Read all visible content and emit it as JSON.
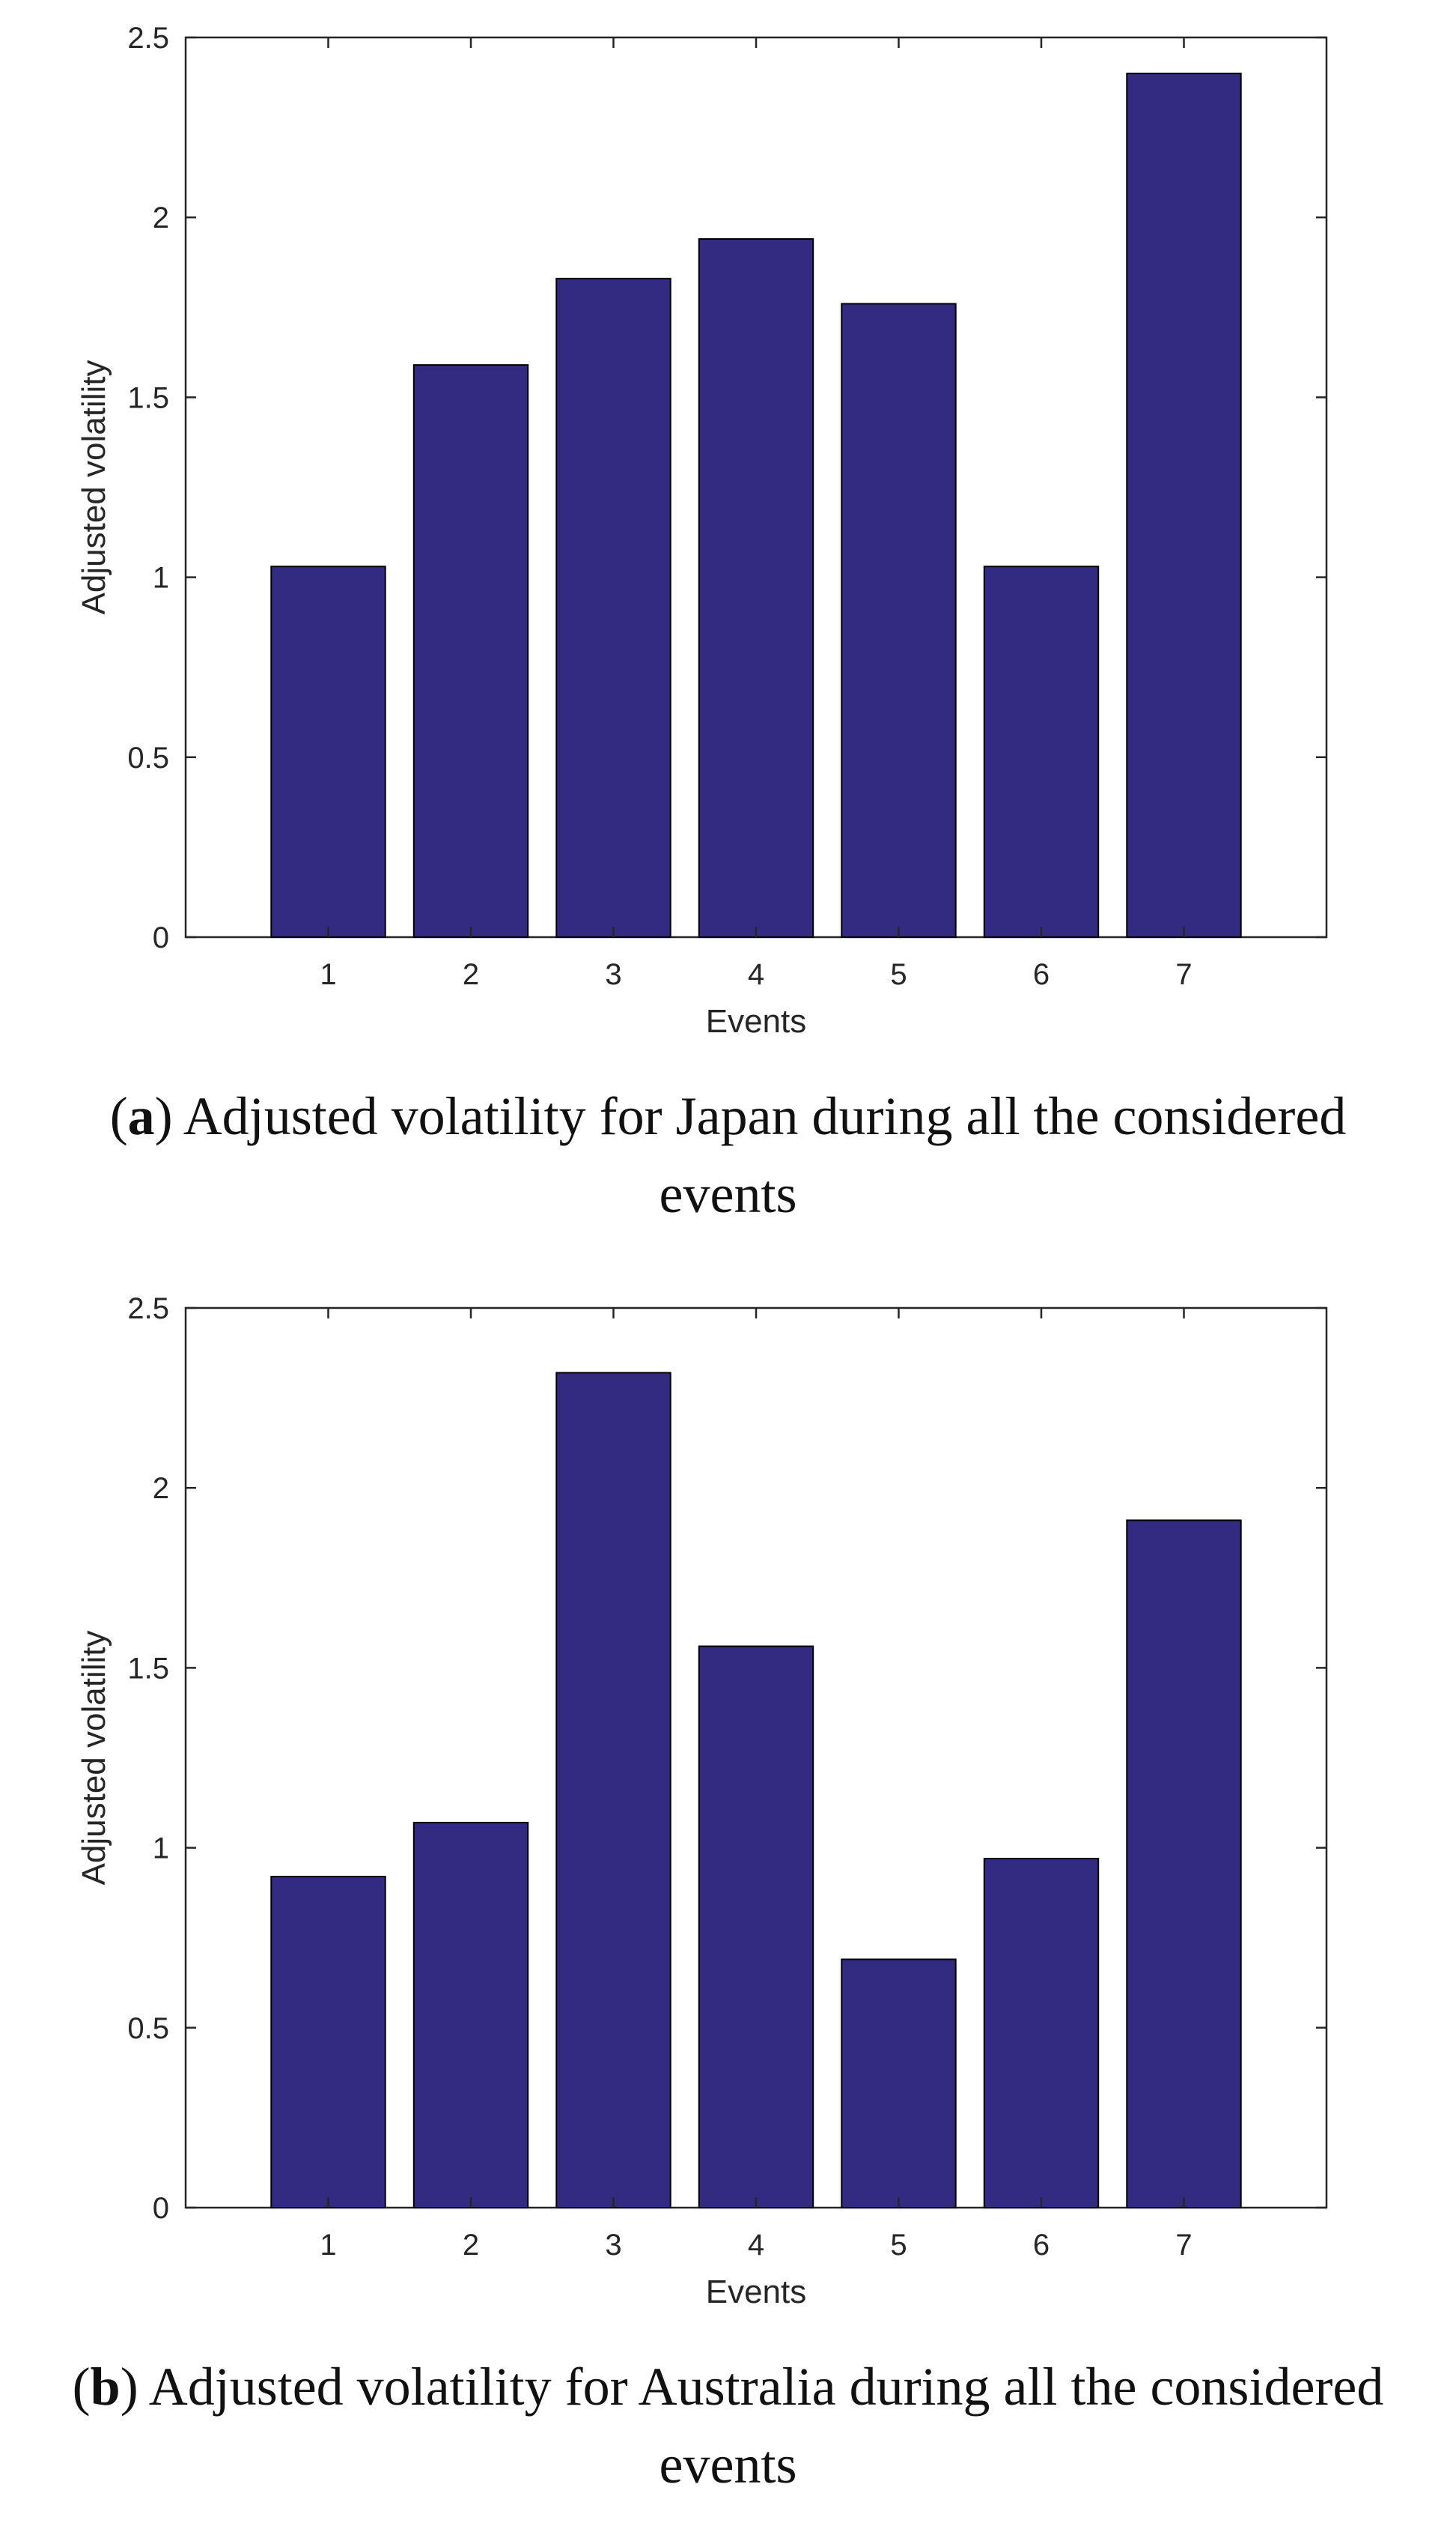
{
  "colors": {
    "bar": "#332a82",
    "axis": "#262626"
  },
  "chart_data": [
    {
      "type": "bar",
      "categories": [
        "1",
        "2",
        "3",
        "4",
        "5",
        "6",
        "7"
      ],
      "values": [
        1.03,
        1.59,
        1.83,
        1.94,
        1.76,
        1.03,
        2.4
      ],
      "xlabel": "Events",
      "ylabel": "Adjusted volatility",
      "ylim": [
        0,
        2.5
      ],
      "yticks": [
        "0",
        "0.5",
        "1",
        "1.5",
        "2",
        "2.5"
      ],
      "caption_letter": "a",
      "caption_text": "Adjusted volatility for Japan during all the considered events"
    },
    {
      "type": "bar",
      "categories": [
        "1",
        "2",
        "3",
        "4",
        "5",
        "6",
        "7"
      ],
      "values": [
        0.92,
        1.07,
        2.32,
        1.56,
        0.69,
        0.97,
        1.91
      ],
      "xlabel": "Events",
      "ylabel": "Adjusted volatility",
      "ylim": [
        0,
        2.5
      ],
      "yticks": [
        "0",
        "0.5",
        "1",
        "1.5",
        "2",
        "2.5"
      ],
      "caption_letter": "b",
      "caption_text": "Adjusted volatility for Australia during all the considered events"
    }
  ]
}
